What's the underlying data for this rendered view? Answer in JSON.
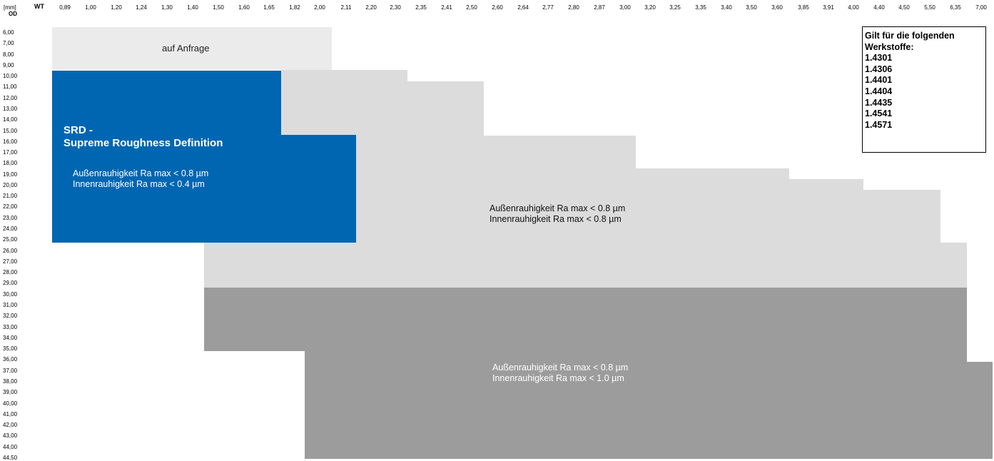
{
  "header": {
    "unit_label": "[mm]",
    "wt_label": "WT",
    "od_label": "OD"
  },
  "wt_columns": [
    "0,89",
    "1,00",
    "1,20",
    "1,24",
    "1,30",
    "1,40",
    "1,50",
    "1,60",
    "1,65",
    "1,82",
    "2,00",
    "2,11",
    "2,20",
    "2,30",
    "2,35",
    "2,41",
    "2,50",
    "2,60",
    "2,64",
    "2,77",
    "2,80",
    "2,87",
    "3,00",
    "3,20",
    "3,25",
    "3,35",
    "3,40",
    "3,50",
    "3,60",
    "3,85",
    "3,91",
    "4,00",
    "4,40",
    "4,50",
    "5,50",
    "6,35",
    "7,00"
  ],
  "od_rows": [
    "6,00",
    "7,00",
    "8,00",
    "9,00",
    "10,00",
    "11,00",
    "12,00",
    "13,00",
    "14,00",
    "15,00",
    "16,00",
    "17,00",
    "18,00",
    "19,00",
    "20,00",
    "21,00",
    "22,00",
    "23,00",
    "24,00",
    "25,00",
    "26,00",
    "27,00",
    "28,00",
    "29,00",
    "30,00",
    "31,00",
    "32,00",
    "33,00",
    "34,00",
    "35,00",
    "36,00",
    "37,00",
    "38,00",
    "39,00",
    "40,00",
    "41,00",
    "42,00",
    "43,00",
    "44,00",
    "44,50"
  ],
  "regions": {
    "anfrage": {
      "label": "auf Anfrage",
      "color": "#ebebeb"
    },
    "srd": {
      "title_line1": "SRD -",
      "title_line2": "Supreme Roughness Definition",
      "line1": "Außenrauhigkeit Ra max < 0.8 µm",
      "line2": "Innenrauhigkeit Ra max < 0.4 µm",
      "color": "#0066b1"
    },
    "standard": {
      "line1": "Außenrauhigkeit Ra max < 0.8 µm",
      "line2": "Innenrauhigkeit Ra max < 0.8 µm",
      "color": "#dcdcdc"
    },
    "large": {
      "line1": "Außenrauhigkeit Ra max < 0.8 µm",
      "line2": "Innenrauhigkeit Ra max < 1.0 µm",
      "color": "#9c9c9c"
    }
  },
  "materials": {
    "title_line1": "Gilt für die folgenden",
    "title_line2": "Werkstoffe:",
    "items": [
      "1.4301",
      "1.4306",
      "1.4401",
      "1.4404",
      "1.4435",
      "1.4541",
      "1.4571"
    ]
  }
}
